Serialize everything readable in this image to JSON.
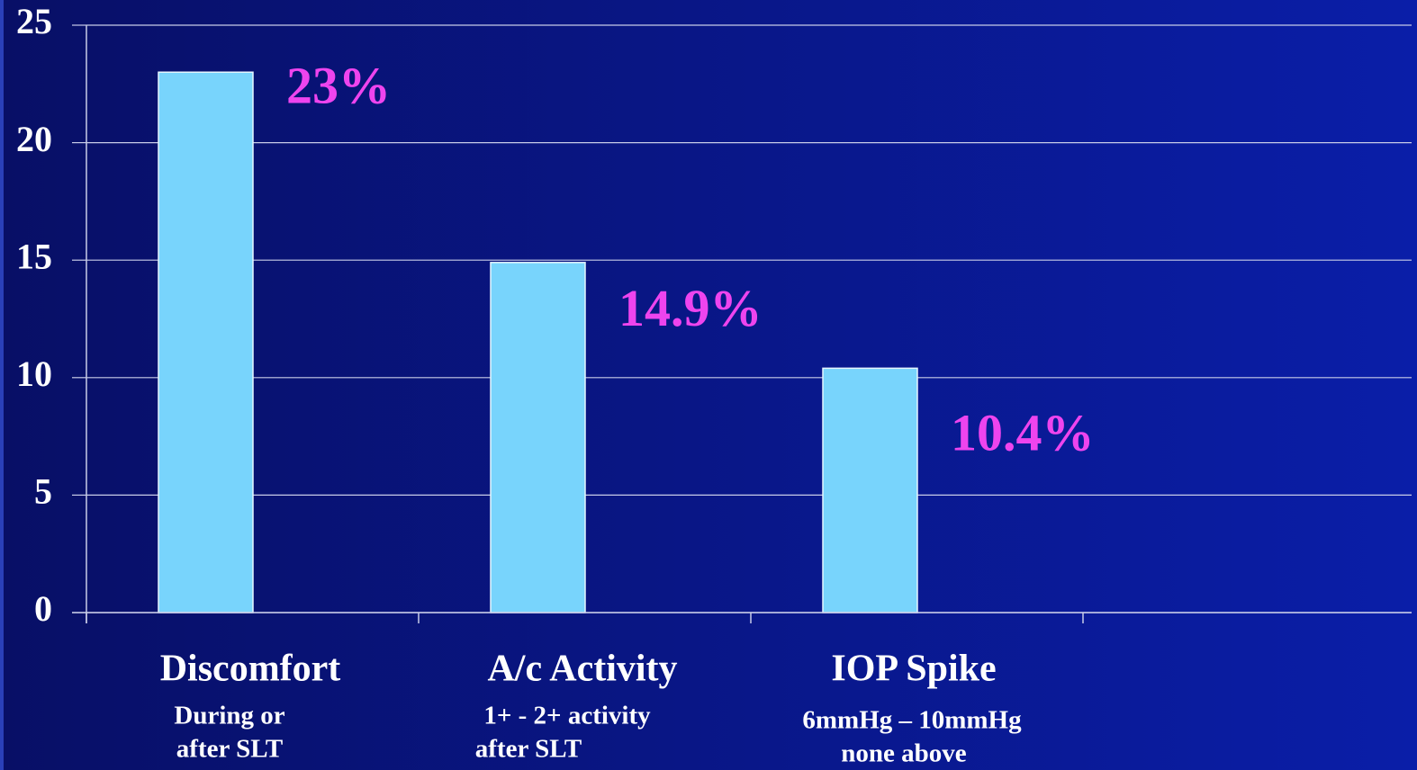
{
  "chart_data": {
    "type": "bar",
    "categories": [
      "Discomfort",
      "A/c Activity",
      "IOP Spike"
    ],
    "category_notes": [
      [
        "During or",
        "after SLT"
      ],
      [
        "1+ - 2+ activity",
        "after SLT"
      ],
      [
        "6mmHg – 10mmHg",
        "none above"
      ]
    ],
    "values": [
      23,
      14.9,
      10.4
    ],
    "value_labels": [
      "23%",
      "14.9%",
      "10.4%"
    ],
    "color": "#78d4fc",
    "label_color": "#ee44ee",
    "ylim": [
      0,
      25
    ],
    "yticks": [
      0,
      5,
      10,
      15,
      20,
      25
    ],
    "grid": true
  }
}
